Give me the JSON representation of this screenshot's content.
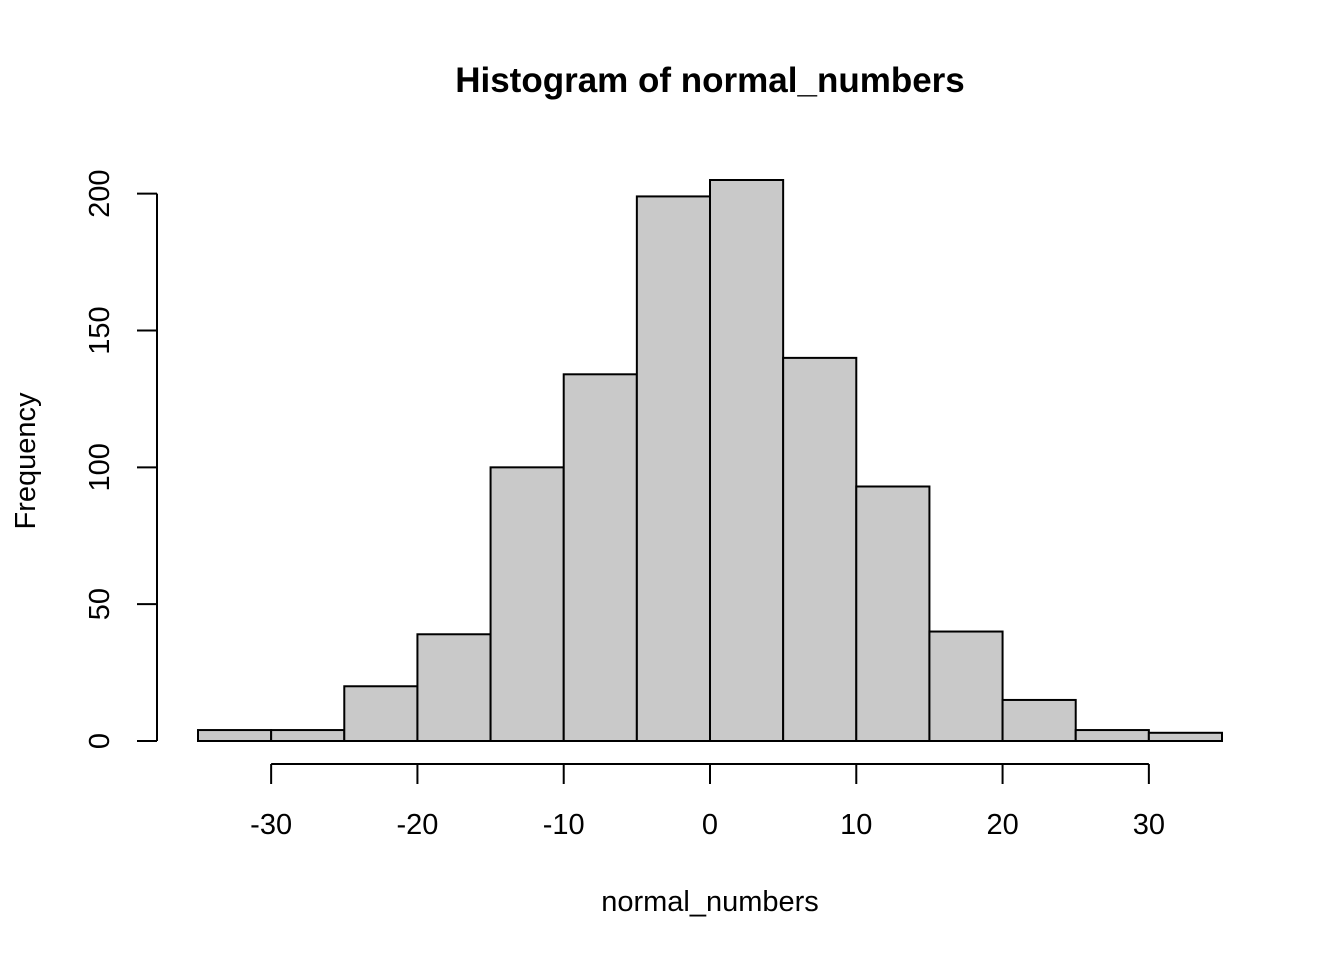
{
  "chart_data": {
    "type": "bar",
    "title": "Histogram of normal_numbers",
    "xlabel": "normal_numbers",
    "ylabel": "Frequency",
    "bin_edges": [
      -35,
      -30,
      -25,
      -20,
      -15,
      -10,
      -5,
      0,
      5,
      10,
      15,
      20,
      25,
      30,
      35
    ],
    "values": [
      4,
      4,
      20,
      39,
      100,
      134,
      199,
      205,
      140,
      93,
      40,
      15,
      4,
      3
    ],
    "x_ticks": [
      -30,
      -20,
      -10,
      0,
      10,
      20,
      30
    ],
    "x_tick_labels": [
      "-30",
      "-20",
      "-10",
      "0",
      "10",
      "20",
      "30"
    ],
    "y_ticks": [
      0,
      50,
      100,
      150,
      200
    ],
    "y_tick_labels": [
      "0",
      "50",
      "100",
      "150",
      "200"
    ],
    "xlim": [
      -35,
      35
    ],
    "ylim": [
      0,
      205
    ],
    "grid": false,
    "legend": "none",
    "bar_fill": "#c9c9c9",
    "bar_stroke": "#000000"
  }
}
